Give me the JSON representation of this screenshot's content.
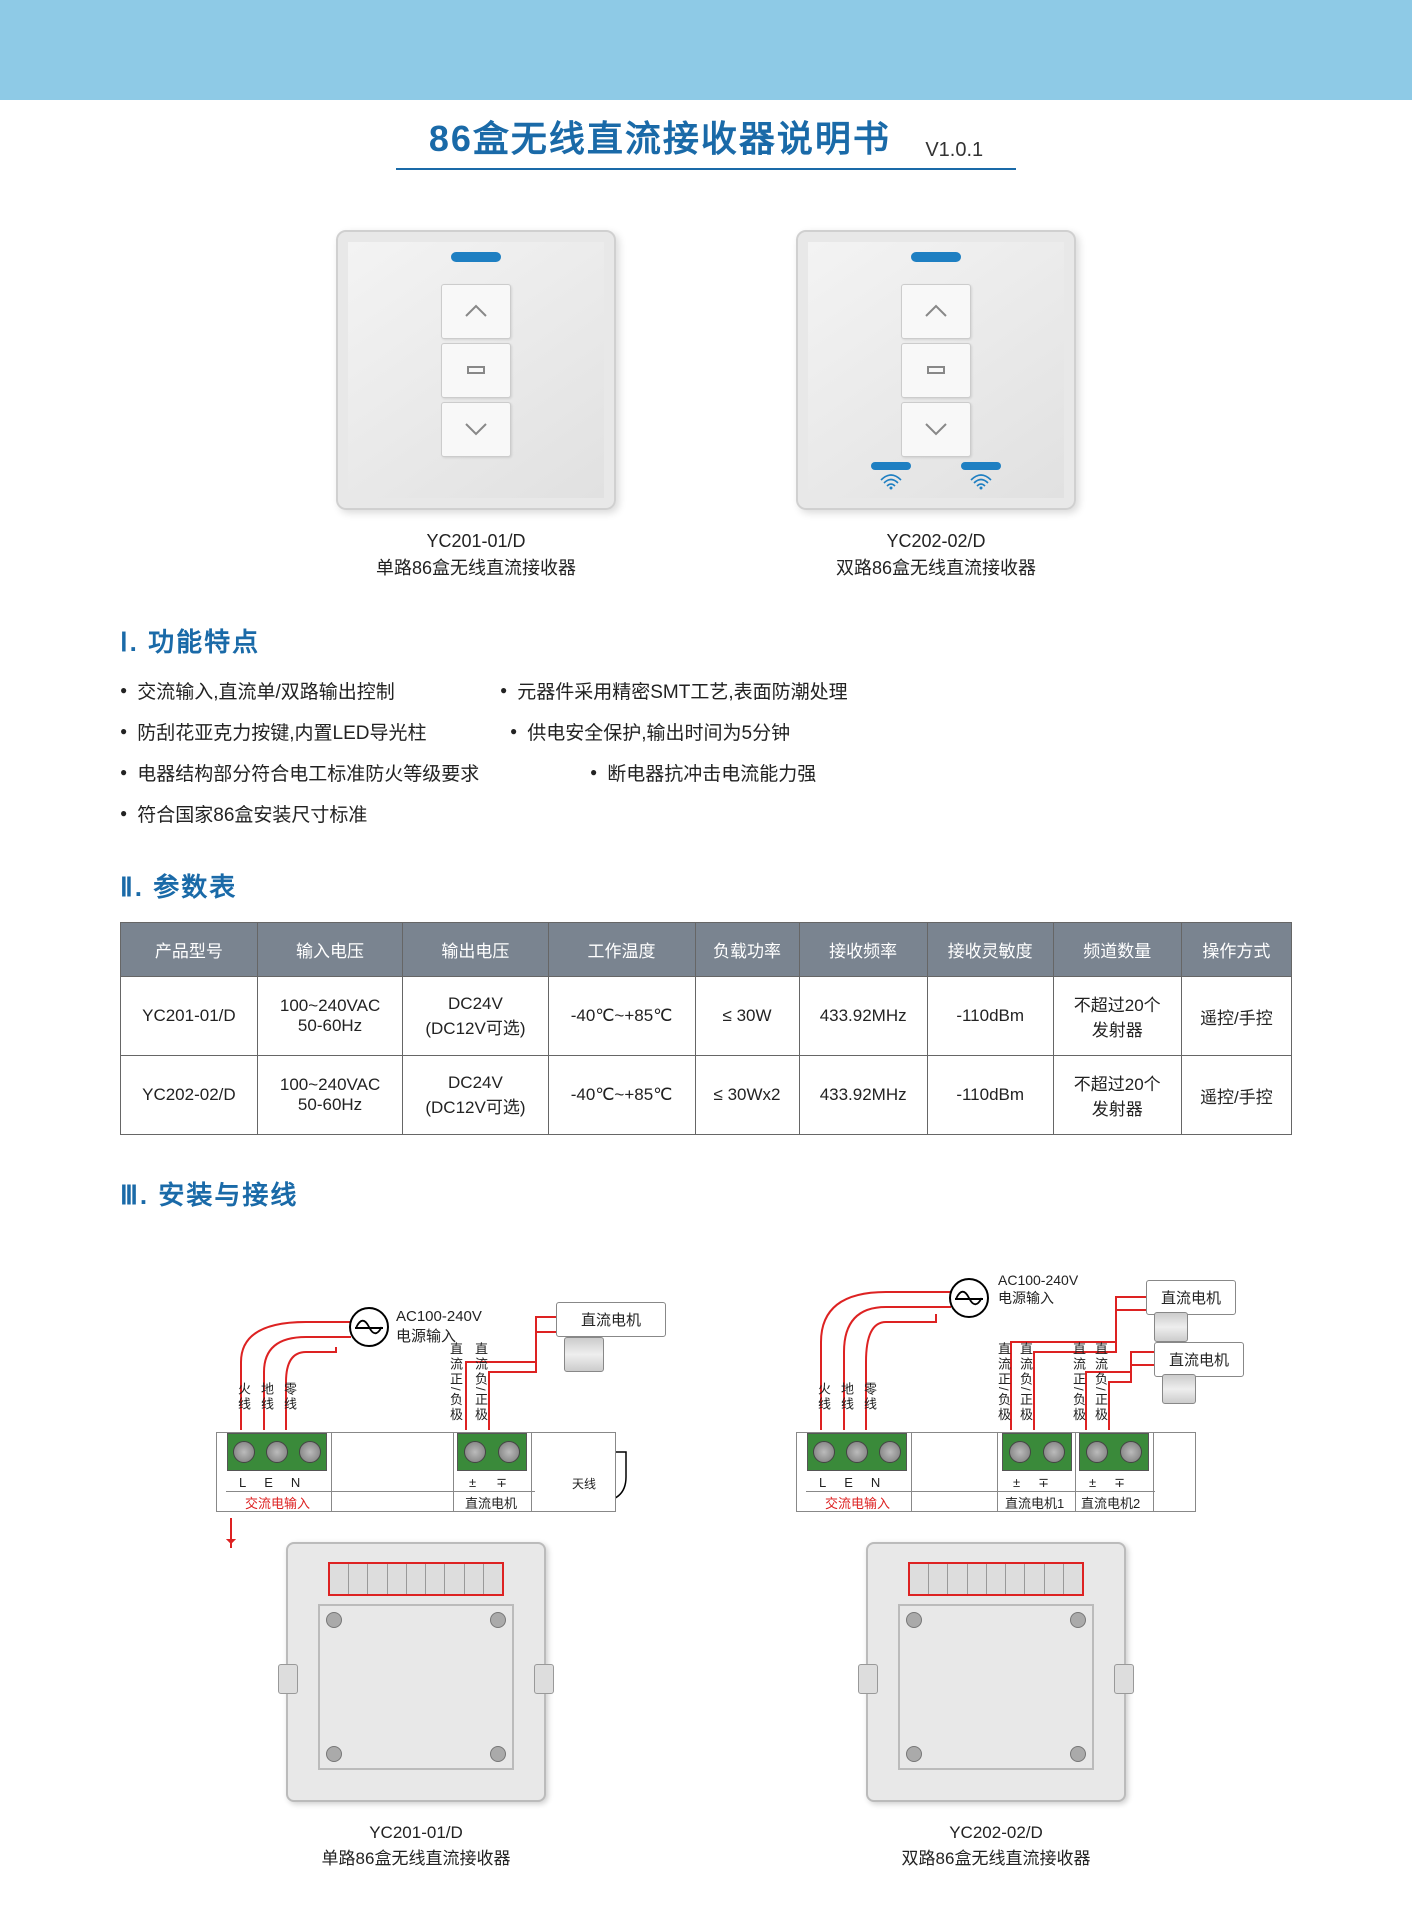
{
  "header_bg": "#8ecae6",
  "accent": "#1a6aa8",
  "title": "86盒无线直流接收器说明书",
  "version": "V1.0.1",
  "products": [
    {
      "model": "YC201-01/D",
      "desc": "单路86盒无线直流接收器",
      "dual": false
    },
    {
      "model": "YC202-02/D",
      "desc": "双路86盒无线直流接收器",
      "dual": true
    }
  ],
  "section1_title": "Ⅰ. 功能特点",
  "features": [
    [
      "交流输入,直流单/双路输出控制",
      "元器件采用精密SMT工艺,表面防潮处理",
      "防刮花亚克力按键,内置LED导光柱"
    ],
    [
      "供电安全保护,输出时间为5分钟",
      "电器结构部分符合电工标准防火等级要求",
      "断电器抗冲击电流能力强"
    ],
    [
      "符合国家86盒安装尺寸标准",
      "",
      ""
    ]
  ],
  "section2_title": "Ⅱ. 参数表",
  "spec_headers": [
    "产品型号",
    "输入电压",
    "输出电压",
    "工作温度",
    "负载功率",
    "接收频率",
    "接收灵敏度",
    "频道数量",
    "操作方式"
  ],
  "spec_rows": [
    [
      "YC201-01/D",
      "100~240VAC\n50-60Hz",
      "DC24V\n(DC12V可选)",
      "-40℃~+85℃",
      "≤ 30W",
      "433.92MHz",
      "-110dBm",
      "不超过20个\n发射器",
      "遥控/手控"
    ],
    [
      "YC202-02/D",
      "100~240VAC\n50-60Hz",
      "DC24V\n(DC12V可选)",
      "-40℃~+85℃",
      "≤ 30Wx2",
      "433.92MHz",
      "-110dBm",
      "不超过20个\n发射器",
      "遥控/手控"
    ]
  ],
  "section3_title": "Ⅲ. 安装与接线",
  "wiring": {
    "ac_label": "AC100-240V\n电源输入",
    "motor_label": "直流电机",
    "term_labels": {
      "L": "L",
      "E": "E",
      "N": "N",
      "plus": "±",
      "minus": "∓"
    },
    "ac_in": "交流电输入",
    "dc_motor": "直流电机",
    "dc_motor1": "直流电机1",
    "dc_motor2": "直流电机2",
    "vline_labels": [
      "火线",
      "地线",
      "零线",
      "直流正/负极",
      "直流负/正极"
    ],
    "antenna": "天线"
  },
  "wiring_products": [
    {
      "model": "YC201-01/D",
      "desc": "单路86盒无线直流接收器"
    },
    {
      "model": "YC202-02/D",
      "desc": "双路86盒无线直流接收器"
    }
  ]
}
